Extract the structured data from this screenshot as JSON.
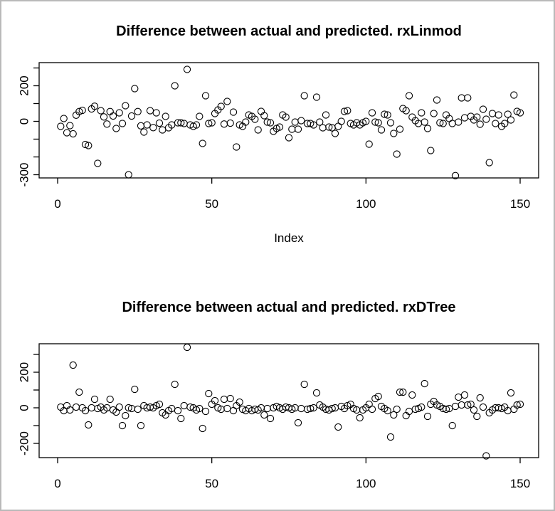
{
  "window": {
    "background_color": "#ffffff",
    "frame_color": "#b9b9b9",
    "plot_stroke_color": "#000000",
    "marker": "open-circle"
  },
  "chart_data": [
    {
      "type": "scatter",
      "title": "Difference between actual and predicted. rxLinmod",
      "xlabel": "Index",
      "ylabel": "",
      "grid": false,
      "legend": "none",
      "n_points": 150,
      "x_start": 1,
      "x_ticks": [
        0,
        50,
        100,
        150
      ],
      "y_ticks": [
        300,
        200,
        100,
        0,
        -100,
        -200,
        -300
      ],
      "y_tick_labels_shown": [
        200,
        0,
        -300
      ],
      "xlim": [
        -6,
        156
      ],
      "ylim": [
        -318,
        330
      ],
      "values": [
        -28,
        16,
        -64,
        -24,
        -70,
        35,
        55,
        62,
        -130,
        -136,
        70,
        85,
        -236,
        60,
        25,
        -15,
        55,
        30,
        -40,
        48,
        -12,
        88,
        -300,
        30,
        184,
        55,
        -25,
        -60,
        -20,
        60,
        -35,
        48,
        -10,
        -48,
        28,
        -36,
        -20,
        200,
        -8,
        -8,
        -12,
        292,
        -20,
        -28,
        -20,
        28,
        -124,
        144,
        -12,
        -8,
        44,
        64,
        84,
        -15,
        112,
        -10,
        52,
        -144,
        -20,
        -28,
        -4,
        36,
        28,
        12,
        -48,
        56,
        32,
        -4,
        -8,
        -56,
        -40,
        -32,
        36,
        24,
        -92,
        -44,
        -4,
        -44,
        4,
        144,
        -12,
        -12,
        -20,
        136,
        -4,
        -36,
        36,
        -32,
        -36,
        -68,
        -28,
        0,
        56,
        60,
        -12,
        -20,
        -8,
        -20,
        -8,
        0,
        -128,
        48,
        -4,
        -8,
        -48,
        40,
        36,
        -8,
        -68,
        -184,
        -44,
        72,
        60,
        144,
        24,
        4,
        -12,
        48,
        -4,
        -40,
        -164,
        44,
        120,
        -8,
        -12,
        36,
        16,
        -12,
        -305,
        -4,
        132,
        20,
        132,
        28,
        8,
        24,
        -16,
        68,
        12,
        -232,
        44,
        -12,
        36,
        -28,
        -12,
        40,
        8,
        148,
        56,
        48
      ]
    },
    {
      "type": "scatter",
      "title": "Difference between actual and predicted. rxDTree",
      "xlabel": "",
      "ylabel": "",
      "grid": false,
      "legend": "none",
      "n_points": 150,
      "x_start": 1,
      "x_ticks": [
        0,
        50,
        100,
        150
      ],
      "y_ticks": [
        300,
        200,
        100,
        0,
        -100,
        -200
      ],
      "y_tick_labels_shown": [
        200,
        0,
        -200
      ],
      "xlim": [
        -6,
        156
      ],
      "ylim": [
        -280,
        360
      ],
      "values": [
        4,
        -16,
        12,
        -12,
        240,
        4,
        88,
        0,
        -16,
        -96,
        0,
        48,
        -4,
        4,
        -12,
        0,
        48,
        -12,
        -24,
        4,
        -100,
        -44,
        0,
        -4,
        104,
        -8,
        -100,
        12,
        0,
        4,
        0,
        12,
        20,
        -28,
        -40,
        -16,
        -4,
        132,
        -16,
        -60,
        12,
        340,
        4,
        0,
        -12,
        -4,
        -116,
        -20,
        80,
        20,
        40,
        0,
        -8,
        48,
        -4,
        52,
        -16,
        12,
        32,
        -8,
        -16,
        -4,
        -16,
        -8,
        -12,
        0,
        -40,
        -4,
        -60,
        0,
        8,
        0,
        -8,
        4,
        0,
        -8,
        0,
        -84,
        -4,
        132,
        -8,
        -4,
        0,
        84,
        16,
        4,
        -8,
        -12,
        -4,
        0,
        -108,
        8,
        -4,
        12,
        20,
        -4,
        -12,
        -56,
        -12,
        0,
        20,
        -8,
        52,
        64,
        8,
        -4,
        -16,
        -164,
        -40,
        -8,
        88,
        88,
        -44,
        -20,
        72,
        -8,
        -4,
        4,
        136,
        -48,
        20,
        36,
        16,
        8,
        -4,
        -8,
        -4,
        -100,
        8,
        60,
        16,
        72,
        16,
        20,
        -12,
        -48,
        56,
        4,
        -270,
        -28,
        -12,
        0,
        0,
        -4,
        4,
        -16,
        84,
        -8,
        16,
        20
      ]
    }
  ]
}
